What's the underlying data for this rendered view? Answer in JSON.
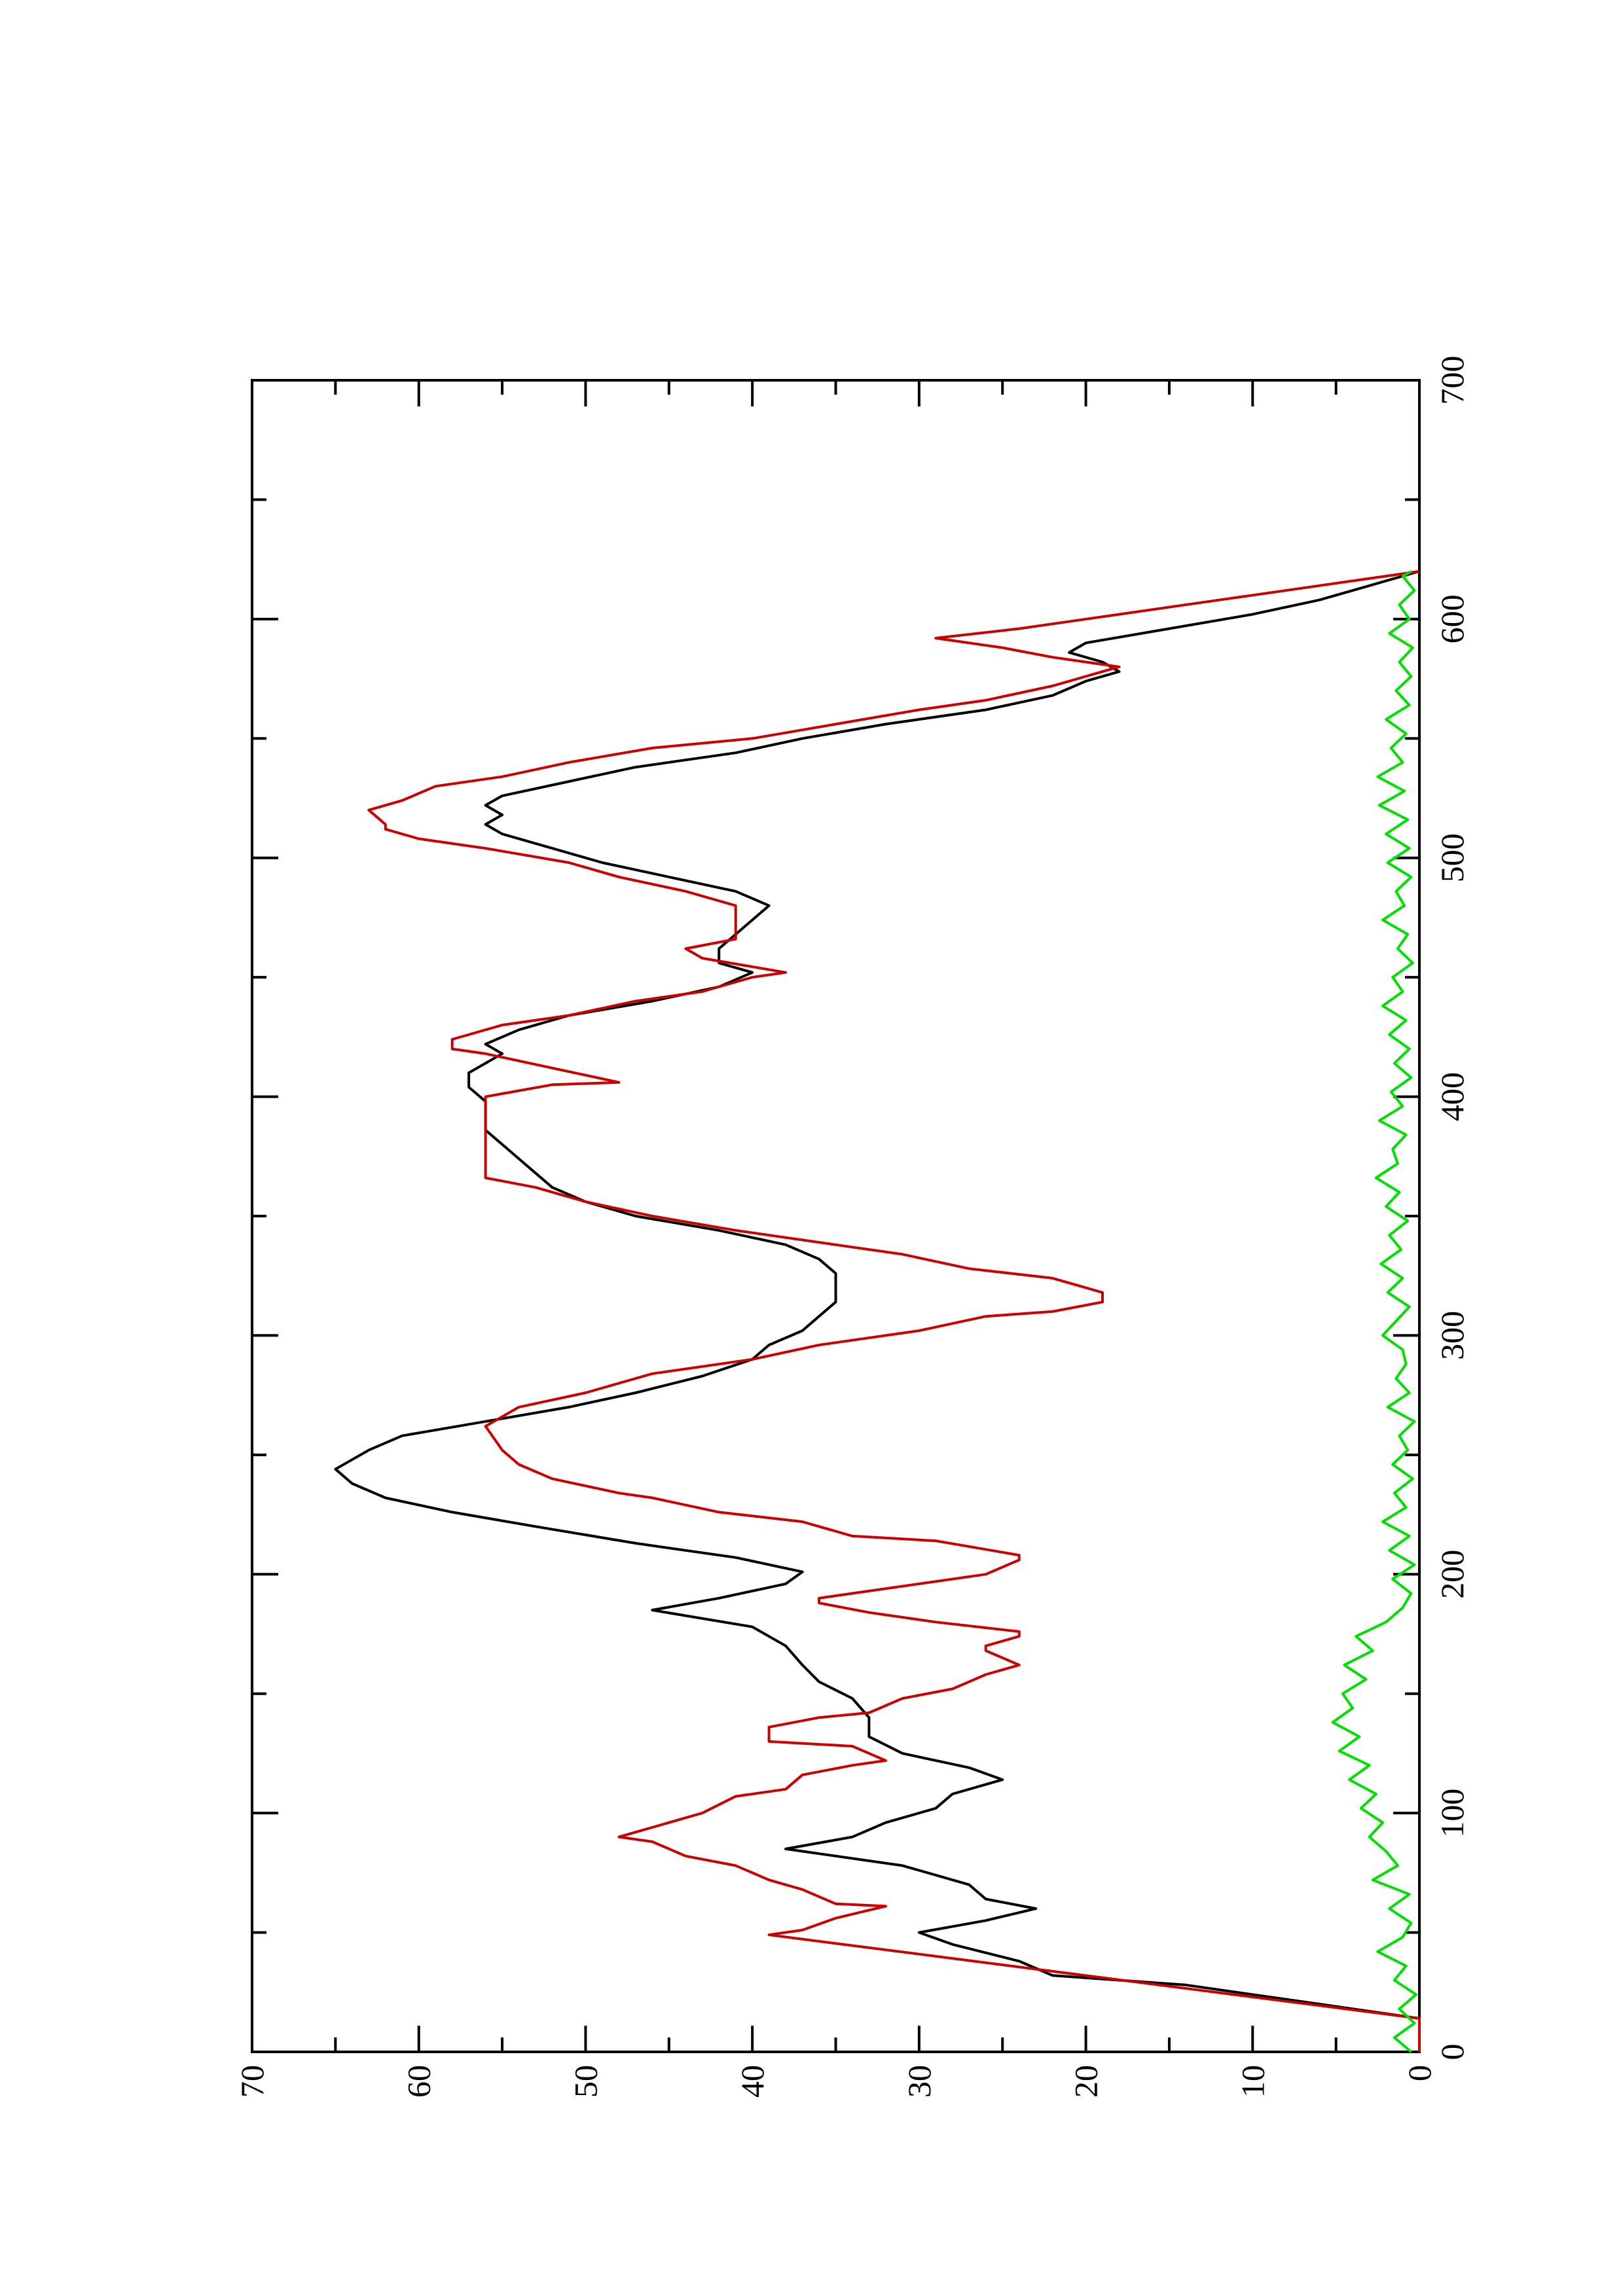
{
  "chart_data": {
    "type": "line",
    "orientation": "rotated-90-clockwise",
    "title": "",
    "xlabel": "",
    "ylabel": "",
    "xlim": [
      0,
      700
    ],
    "ylim": [
      0,
      70
    ],
    "x_ticks": [
      "0",
      "100",
      "200",
      "300",
      "400",
      "500",
      "600",
      "700"
    ],
    "y_ticks": [
      "0",
      "10",
      "20",
      "30",
      "40",
      "50",
      "60",
      "70"
    ],
    "grid": false,
    "legend": "none",
    "series": [
      {
        "color": "#000000",
        "x": [
          0,
          14,
          28,
          32,
          38,
          45,
          50,
          55,
          60,
          64,
          70,
          78,
          85,
          90,
          96,
          102,
          108,
          114,
          119,
          125,
          132,
          140,
          148,
          155,
          162,
          170,
          178,
          185,
          190,
          196,
          201,
          207,
          213,
          220,
          226,
          232,
          238,
          244,
          248,
          252,
          258,
          264,
          270,
          276,
          283,
          290,
          296,
          302,
          308,
          314,
          320,
          326,
          332,
          338,
          344,
          350,
          356,
          362,
          368,
          374,
          380,
          386,
          392,
          398,
          404,
          410,
          414,
          418,
          422,
          428,
          434,
          440,
          446,
          452,
          456,
          462,
          468,
          474,
          480,
          486,
          492,
          498,
          504,
          510,
          514,
          518,
          522,
          526,
          532,
          538,
          544,
          550,
          556,
          562,
          568,
          574,
          578,
          582,
          586,
          590,
          596,
          602,
          608,
          614,
          620
        ],
        "y": [
          0,
          0,
          14,
          22,
          24,
          28,
          30,
          26,
          23,
          26,
          27,
          31,
          38,
          34,
          32,
          29,
          28,
          25,
          27,
          31,
          33,
          33,
          34,
          36,
          37,
          38,
          40,
          46,
          42,
          38,
          37,
          41,
          47,
          53,
          58,
          62,
          64,
          65,
          64,
          63,
          61,
          56,
          51,
          47,
          43,
          40,
          39,
          37,
          36,
          35,
          35,
          35,
          36,
          38,
          42,
          47,
          50,
          52,
          53,
          54,
          55,
          56,
          56,
          56,
          57,
          57,
          56,
          55,
          56,
          54,
          51,
          46,
          42,
          40,
          42,
          42,
          41,
          40,
          39,
          41,
          45,
          49,
          52,
          55,
          56,
          55,
          56,
          55,
          51,
          47,
          41,
          37,
          32,
          26,
          22,
          20,
          18,
          19,
          21,
          20,
          15,
          10,
          6,
          3,
          0
        ]
      },
      {
        "color": "#cc0000",
        "x": [
          0,
          14,
          49,
          51,
          56,
          61,
          62,
          68,
          72,
          78,
          82,
          88,
          90,
          96,
          100,
          107,
          110,
          116,
          120,
          122,
          128,
          130,
          136,
          140,
          142,
          148,
          152,
          158,
          162,
          168,
          170,
          174,
          176,
          180,
          184,
          188,
          190,
          196,
          200,
          206,
          208,
          214,
          216,
          222,
          226,
          232,
          234,
          240,
          246,
          252,
          262,
          270,
          276,
          284,
          290,
          296,
          302,
          308,
          310,
          314,
          318,
          324,
          328,
          334,
          338,
          344,
          350,
          356,
          362,
          366,
          372,
          378,
          384,
          390,
          396,
          400,
          405,
          406,
          412,
          418,
          420,
          424,
          430,
          434,
          440,
          444,
          450,
          452,
          458,
          462,
          466,
          470,
          474,
          480,
          486,
          492,
          498,
          504,
          508,
          512,
          514,
          520,
          524,
          530,
          534,
          540,
          546,
          550,
          556,
          562,
          566,
          572,
          578,
          580,
          584,
          588,
          592,
          596,
          602,
          608,
          614,
          620
        ],
        "y": [
          0,
          0,
          39,
          37,
          35,
          32,
          35,
          37,
          39,
          41,
          44,
          46,
          48,
          45,
          43,
          41,
          38,
          37,
          34,
          32,
          34,
          39,
          39,
          36,
          33,
          31,
          28,
          26,
          24,
          26,
          26,
          24,
          24,
          29,
          33,
          36,
          36,
          30,
          26,
          24,
          24,
          29,
          34,
          37,
          42,
          46,
          48,
          52,
          54,
          55,
          56,
          54,
          50,
          46,
          40,
          36,
          30,
          26,
          22,
          19,
          19,
          22,
          27,
          31,
          35,
          41,
          46,
          50,
          53,
          56,
          56,
          56,
          56,
          56,
          56,
          56,
          52,
          48,
          52,
          56,
          58,
          58,
          55,
          51,
          47,
          43,
          40,
          38,
          43,
          44,
          41,
          41,
          41,
          41,
          44,
          48,
          51,
          56,
          60,
          62,
          62,
          63,
          61,
          59,
          55,
          51,
          46,
          40,
          35,
          30,
          26,
          22,
          19,
          18,
          22,
          25,
          29,
          24,
          18,
          12,
          6,
          0
        ]
      },
      {
        "color": "#00e000",
        "x": [
          0,
          6,
          12,
          18,
          24,
          30,
          36,
          42,
          48,
          54,
          60,
          66,
          72,
          78,
          84,
          90,
          96,
          102,
          108,
          114,
          120,
          126,
          132,
          138,
          144,
          150,
          156,
          162,
          168,
          174,
          180,
          186,
          192,
          198,
          204,
          210,
          216,
          222,
          228,
          234,
          240,
          246,
          252,
          258,
          264,
          270,
          276,
          282,
          288,
          294,
          300,
          306,
          312,
          318,
          324,
          330,
          336,
          342,
          348,
          354,
          360,
          366,
          372,
          378,
          384,
          390,
          396,
          402,
          408,
          414,
          420,
          426,
          432,
          438,
          444,
          450,
          456,
          462,
          468,
          474,
          480,
          486,
          492,
          498,
          504,
          510,
          516,
          522,
          528,
          534,
          540,
          546,
          552,
          558,
          564,
          570,
          576,
          582,
          588,
          594,
          600,
          606,
          612,
          618,
          620
        ],
        "y": [
          0.5,
          1.5,
          0.3,
          1.2,
          0.2,
          1.5,
          0.8,
          2.5,
          1.0,
          0.5,
          1.8,
          0.6,
          2.8,
          1.3,
          2.0,
          3.0,
          2.2,
          3.5,
          2.6,
          4.2,
          3.0,
          4.8,
          3.6,
          5.2,
          4.0,
          4.6,
          3.2,
          4.5,
          2.8,
          3.8,
          2.0,
          1.0,
          0.5,
          1.6,
          0.3,
          1.8,
          0.6,
          2.2,
          0.8,
          1.5,
          0.4,
          1.6,
          0.7,
          1.2,
          0.3,
          1.9,
          0.6,
          1.4,
          0.8,
          1.0,
          2.2,
          1.4,
          0.6,
          1.9,
          1.0,
          2.3,
          1.1,
          1.8,
          0.7,
          2.0,
          1.2,
          2.6,
          1.3,
          1.6,
          0.8,
          2.4,
          1.0,
          1.7,
          0.5,
          1.5,
          0.6,
          1.8,
          0.8,
          2.2,
          1.0,
          1.6,
          0.4,
          1.3,
          0.7,
          2.2,
          0.9,
          1.4,
          0.5,
          1.9,
          0.6,
          2.0,
          0.7,
          2.4,
          0.9,
          2.5,
          1.0,
          1.7,
          0.8,
          2.0,
          0.6,
          1.4,
          0.5,
          1.2,
          0.4,
          1.8,
          0.6,
          1.2,
          0.3,
          1.0,
          0.5
        ]
      }
    ]
  }
}
